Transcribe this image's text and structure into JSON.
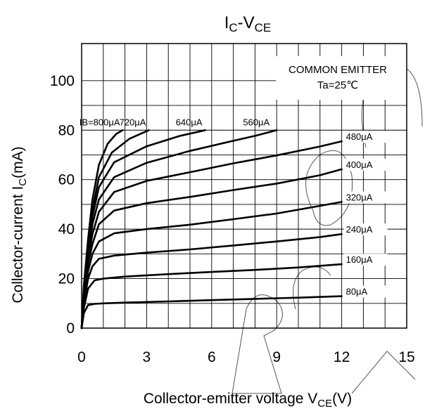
{
  "chart_data": {
    "type": "line",
    "title": "IC-VCE",
    "title_main": "I",
    "title_sub1": "C",
    "title_mid": "-V",
    "title_sub2": "CE",
    "xlabel": "Collector-emitter voltage VCE(V)",
    "xlabel_main": "Collector-emitter voltage V",
    "xlabel_sub": "CE",
    "xlabel_tail": "(V)",
    "ylabel": "Collector-current IC(mA)",
    "ylabel_main": "Collector-current I",
    "ylabel_sub": "C",
    "ylabel_tail": "(mA)",
    "xlim": [
      0,
      15
    ],
    "ylim": [
      0,
      115
    ],
    "x_ticks": [
      0,
      3,
      6,
      9,
      12,
      15
    ],
    "y_ticks": [
      0,
      20,
      40,
      60,
      80,
      100
    ],
    "x_grid": [
      1,
      2,
      3,
      4,
      5,
      6,
      7,
      8,
      9,
      10,
      11,
      12,
      13,
      14
    ],
    "y_grid": [
      10,
      20,
      30,
      40,
      50,
      60,
      70,
      80,
      90,
      100
    ],
    "grid": true,
    "annotation": {
      "line1": "COMMON EMITTER",
      "line2": "Ta=25℃",
      "placement": "top-right"
    },
    "series": [
      {
        "name": "80μA",
        "label": "80μA",
        "points": [
          [
            0,
            0
          ],
          [
            0.1,
            6
          ],
          [
            0.3,
            9.3
          ],
          [
            0.6,
            9.8
          ],
          [
            1,
            10
          ],
          [
            2,
            10.3
          ],
          [
            4,
            10.8
          ],
          [
            6,
            11.3
          ],
          [
            8,
            11.8
          ],
          [
            10,
            12.3
          ],
          [
            12,
            12.9
          ]
        ]
      },
      {
        "name": "160μA",
        "label": "160μA",
        "points": [
          [
            0,
            0
          ],
          [
            0.1,
            8
          ],
          [
            0.3,
            16
          ],
          [
            0.6,
            19.3
          ],
          [
            1,
            20
          ],
          [
            2,
            20.8
          ],
          [
            4,
            21.8
          ],
          [
            6,
            22.7
          ],
          [
            8,
            23.5
          ],
          [
            10,
            24.5
          ],
          [
            12,
            25.8
          ]
        ]
      },
      {
        "name": "240μA",
        "label": "240μA",
        "points": [
          [
            0,
            0
          ],
          [
            0.1,
            10
          ],
          [
            0.3,
            20
          ],
          [
            0.5,
            25
          ],
          [
            0.8,
            28
          ],
          [
            1.5,
            29.3
          ],
          [
            3,
            30.5
          ],
          [
            5,
            31.8
          ],
          [
            7,
            33.4
          ],
          [
            9,
            35
          ],
          [
            11,
            36.8
          ],
          [
            12,
            38
          ]
        ]
      },
      {
        "name": "320μA",
        "label": "320μA",
        "points": [
          [
            0,
            0
          ],
          [
            0.1,
            11
          ],
          [
            0.3,
            23
          ],
          [
            0.5,
            30
          ],
          [
            0.8,
            35
          ],
          [
            1.5,
            38.3
          ],
          [
            3,
            40
          ],
          [
            5,
            41.8
          ],
          [
            7,
            44
          ],
          [
            9,
            46.3
          ],
          [
            11,
            49.4
          ],
          [
            12,
            51
          ]
        ]
      },
      {
        "name": "400μA",
        "label": "400μA",
        "points": [
          [
            0,
            0
          ],
          [
            0.1,
            12
          ],
          [
            0.3,
            26
          ],
          [
            0.5,
            34
          ],
          [
            0.8,
            42
          ],
          [
            1.5,
            47.5
          ],
          [
            3,
            50.5
          ],
          [
            5,
            53
          ],
          [
            7,
            55.8
          ],
          [
            9,
            58.4
          ],
          [
            11,
            61.8
          ],
          [
            12,
            64.2
          ]
        ]
      },
      {
        "name": "480μA",
        "label": "480μA",
        "points": [
          [
            0,
            0
          ],
          [
            0.1,
            13
          ],
          [
            0.3,
            28
          ],
          [
            0.5,
            38
          ],
          [
            0.8,
            47
          ],
          [
            1.5,
            55
          ],
          [
            3,
            59.5
          ],
          [
            5,
            63
          ],
          [
            7,
            66.6
          ],
          [
            9,
            69.8
          ],
          [
            11,
            73.4
          ],
          [
            12,
            75.5
          ]
        ]
      },
      {
        "name": "560μA",
        "label": "560μA",
        "points": [
          [
            0,
            0
          ],
          [
            0.1,
            14
          ],
          [
            0.3,
            30
          ],
          [
            0.5,
            42
          ],
          [
            0.8,
            52
          ],
          [
            1.5,
            61
          ],
          [
            3,
            66.8
          ],
          [
            5,
            71.6
          ],
          [
            7,
            75.7
          ],
          [
            8,
            77.7
          ],
          [
            9,
            80
          ]
        ]
      },
      {
        "name": "640μA",
        "label": "640μA",
        "points": [
          [
            0,
            0
          ],
          [
            0.1,
            15
          ],
          [
            0.3,
            32
          ],
          [
            0.5,
            45
          ],
          [
            0.8,
            57
          ],
          [
            1.5,
            67
          ],
          [
            3,
            73.5
          ],
          [
            4.5,
            77.6
          ],
          [
            5.7,
            80
          ]
        ]
      },
      {
        "name": "720μA",
        "label": "720μA",
        "points": [
          [
            0,
            0
          ],
          [
            0.1,
            16
          ],
          [
            0.3,
            34
          ],
          [
            0.5,
            48
          ],
          [
            0.8,
            61
          ],
          [
            1.4,
            71
          ],
          [
            2.2,
            76.5
          ],
          [
            3.1,
            80
          ]
        ]
      },
      {
        "name": "800μA",
        "label": "IB=800μA",
        "points": [
          [
            0,
            0
          ],
          [
            0.1,
            17
          ],
          [
            0.3,
            36
          ],
          [
            0.5,
            52
          ],
          [
            0.8,
            66
          ],
          [
            1.2,
            74.5
          ],
          [
            1.6,
            78.5
          ],
          [
            1.9,
            80
          ]
        ]
      }
    ]
  }
}
